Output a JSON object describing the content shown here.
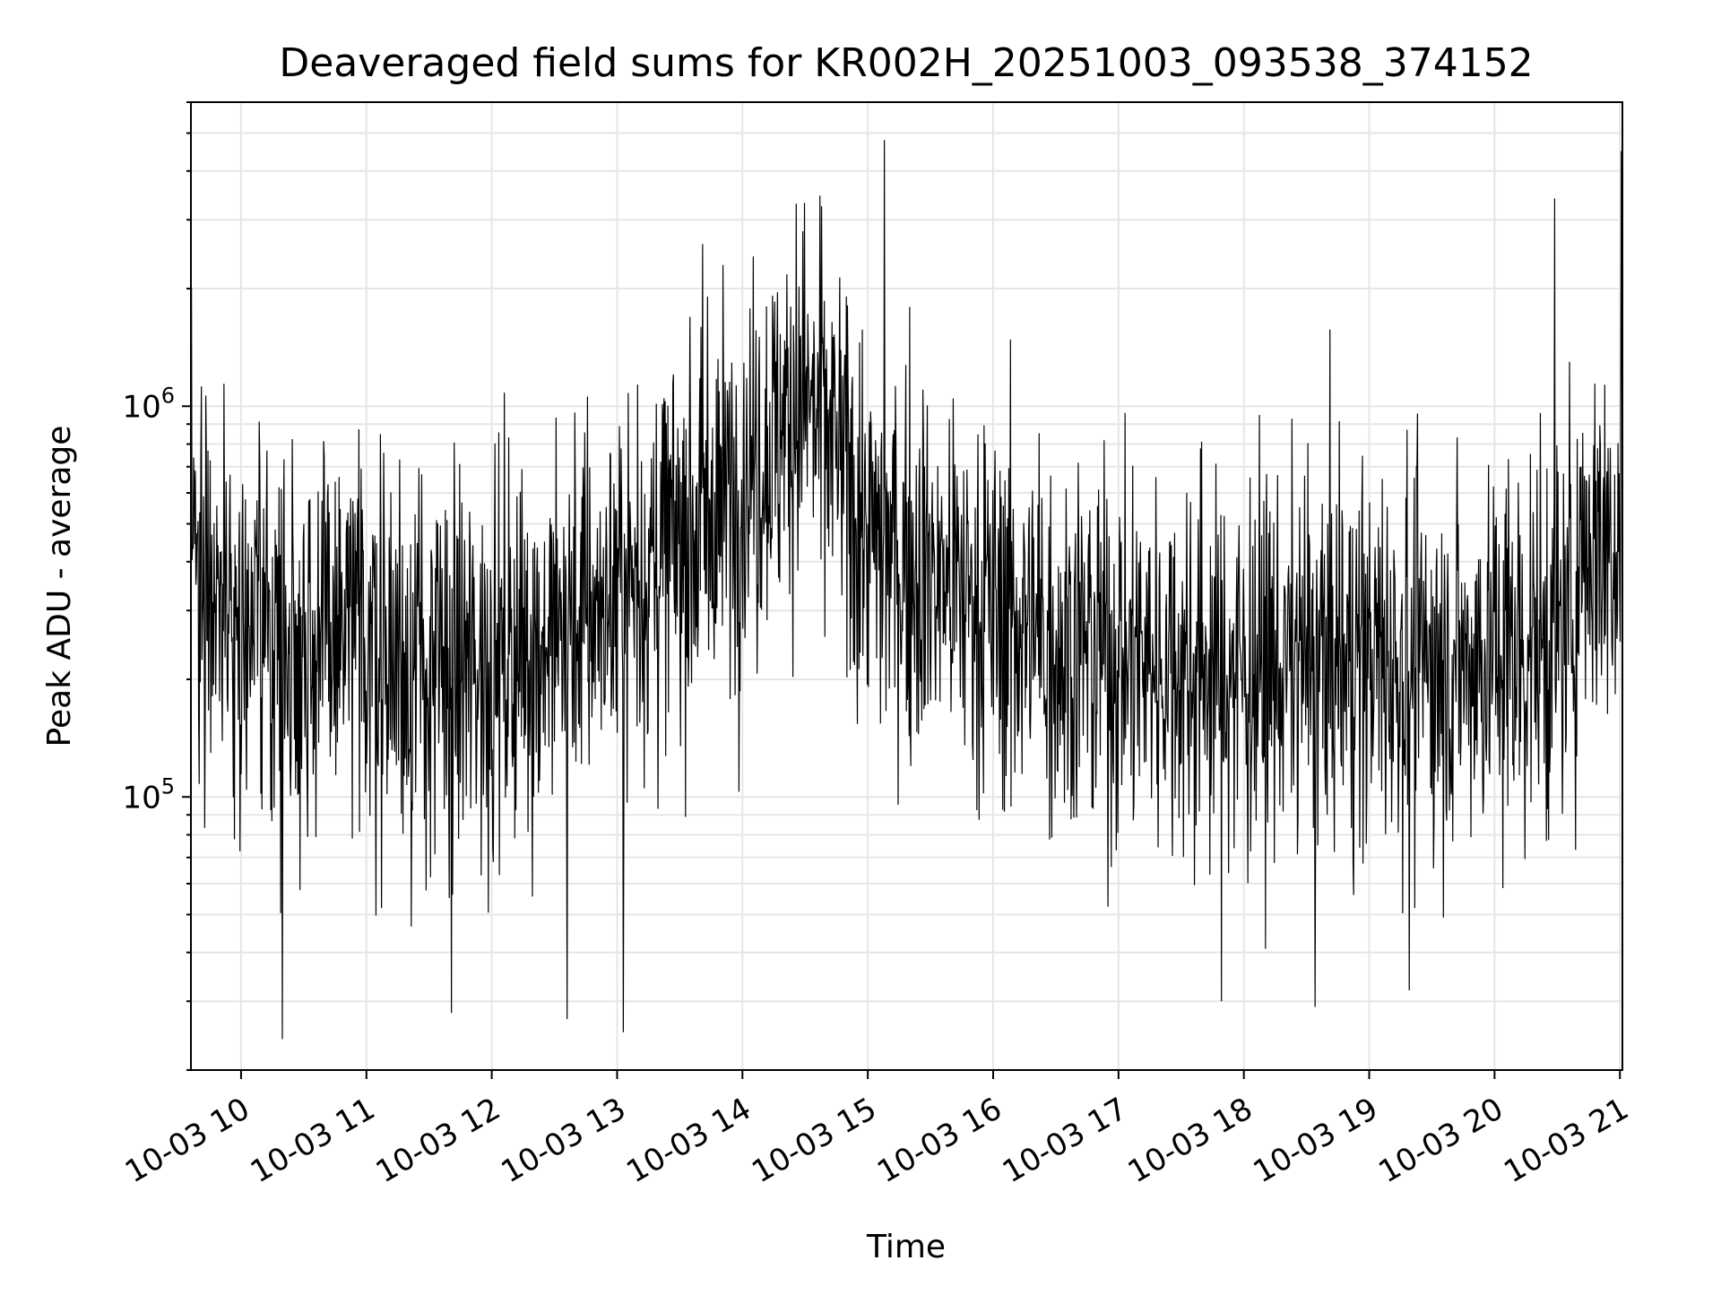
{
  "chart_data": {
    "type": "line",
    "title": "Deaveraged field sums for KR002H_20251003_093538_374152",
    "xlabel": "Time",
    "ylabel": "Peak ADU - average",
    "y_scale": "log",
    "ylim": [
      20000,
      6000000
    ],
    "xlim_hours": [
      9.6,
      21.02
    ],
    "grid": true,
    "colors": {
      "line": "#000000",
      "grid": "#e6e6e6",
      "axes": "#000000"
    },
    "x_ticks": [
      {
        "hour": 10,
        "label": "10-03 10"
      },
      {
        "hour": 11,
        "label": "10-03 11"
      },
      {
        "hour": 12,
        "label": "10-03 12"
      },
      {
        "hour": 13,
        "label": "10-03 13"
      },
      {
        "hour": 14,
        "label": "10-03 14"
      },
      {
        "hour": 15,
        "label": "10-03 15"
      },
      {
        "hour": 16,
        "label": "10-03 16"
      },
      {
        "hour": 17,
        "label": "10-03 17"
      },
      {
        "hour": 18,
        "label": "10-03 18"
      },
      {
        "hour": 19,
        "label": "10-03 19"
      },
      {
        "hour": 20,
        "label": "10-03 20"
      },
      {
        "hour": 21,
        "label": "10-03 21"
      }
    ],
    "y_ticks": [
      {
        "value": 100000,
        "base": "10",
        "exp": "5"
      },
      {
        "value": 1000000,
        "base": "10",
        "exp": "6"
      }
    ],
    "series": [
      {
        "name": "Deaveraged field sum",
        "envelope": [
          {
            "hour": 9.6,
            "median": 450000
          },
          {
            "hour": 10.0,
            "median": 280000
          },
          {
            "hour": 10.5,
            "median": 250000
          },
          {
            "hour": 11.0,
            "median": 260000
          },
          {
            "hour": 11.5,
            "median": 200000
          },
          {
            "hour": 12.0,
            "median": 220000
          },
          {
            "hour": 12.5,
            "median": 260000
          },
          {
            "hour": 13.0,
            "median": 330000
          },
          {
            "hour": 13.5,
            "median": 450000
          },
          {
            "hour": 14.0,
            "median": 650000
          },
          {
            "hour": 14.5,
            "median": 1050000
          },
          {
            "hour": 14.8,
            "median": 700000
          },
          {
            "hour": 15.0,
            "median": 450000
          },
          {
            "hour": 15.5,
            "median": 380000
          },
          {
            "hour": 16.0,
            "median": 300000
          },
          {
            "hour": 16.5,
            "median": 250000
          },
          {
            "hour": 17.0,
            "median": 230000
          },
          {
            "hour": 17.5,
            "median": 220000
          },
          {
            "hour": 18.0,
            "median": 210000
          },
          {
            "hour": 18.5,
            "median": 220000
          },
          {
            "hour": 19.0,
            "median": 230000
          },
          {
            "hour": 19.5,
            "median": 220000
          },
          {
            "hour": 20.0,
            "median": 230000
          },
          {
            "hour": 20.6,
            "median": 260000
          },
          {
            "hour": 20.7,
            "median": 450000
          },
          {
            "hour": 21.02,
            "median": 480000
          }
        ],
        "spikes": [
          {
            "hour": 15.13,
            "value": 4800000
          },
          {
            "hour": 20.48,
            "value": 3400000
          },
          {
            "hour": 21.01,
            "value": 4500000
          },
          {
            "hour": 14.43,
            "value": 3300000
          },
          {
            "hour": 14.63,
            "value": 3250000
          },
          {
            "hour": 13.68,
            "value": 2600000
          },
          {
            "hour": 20.6,
            "value": 1300000
          },
          {
            "hour": 10.33,
            "value": 24000
          },
          {
            "hour": 13.05,
            "value": 25000
          },
          {
            "hour": 11.68,
            "value": 28000
          },
          {
            "hour": 12.6,
            "value": 27000
          },
          {
            "hour": 17.82,
            "value": 30000
          },
          {
            "hour": 18.57,
            "value": 29000
          },
          {
            "hour": 19.32,
            "value": 32000
          }
        ],
        "noise_decades": 0.55,
        "sample_count": 2600
      }
    ]
  }
}
